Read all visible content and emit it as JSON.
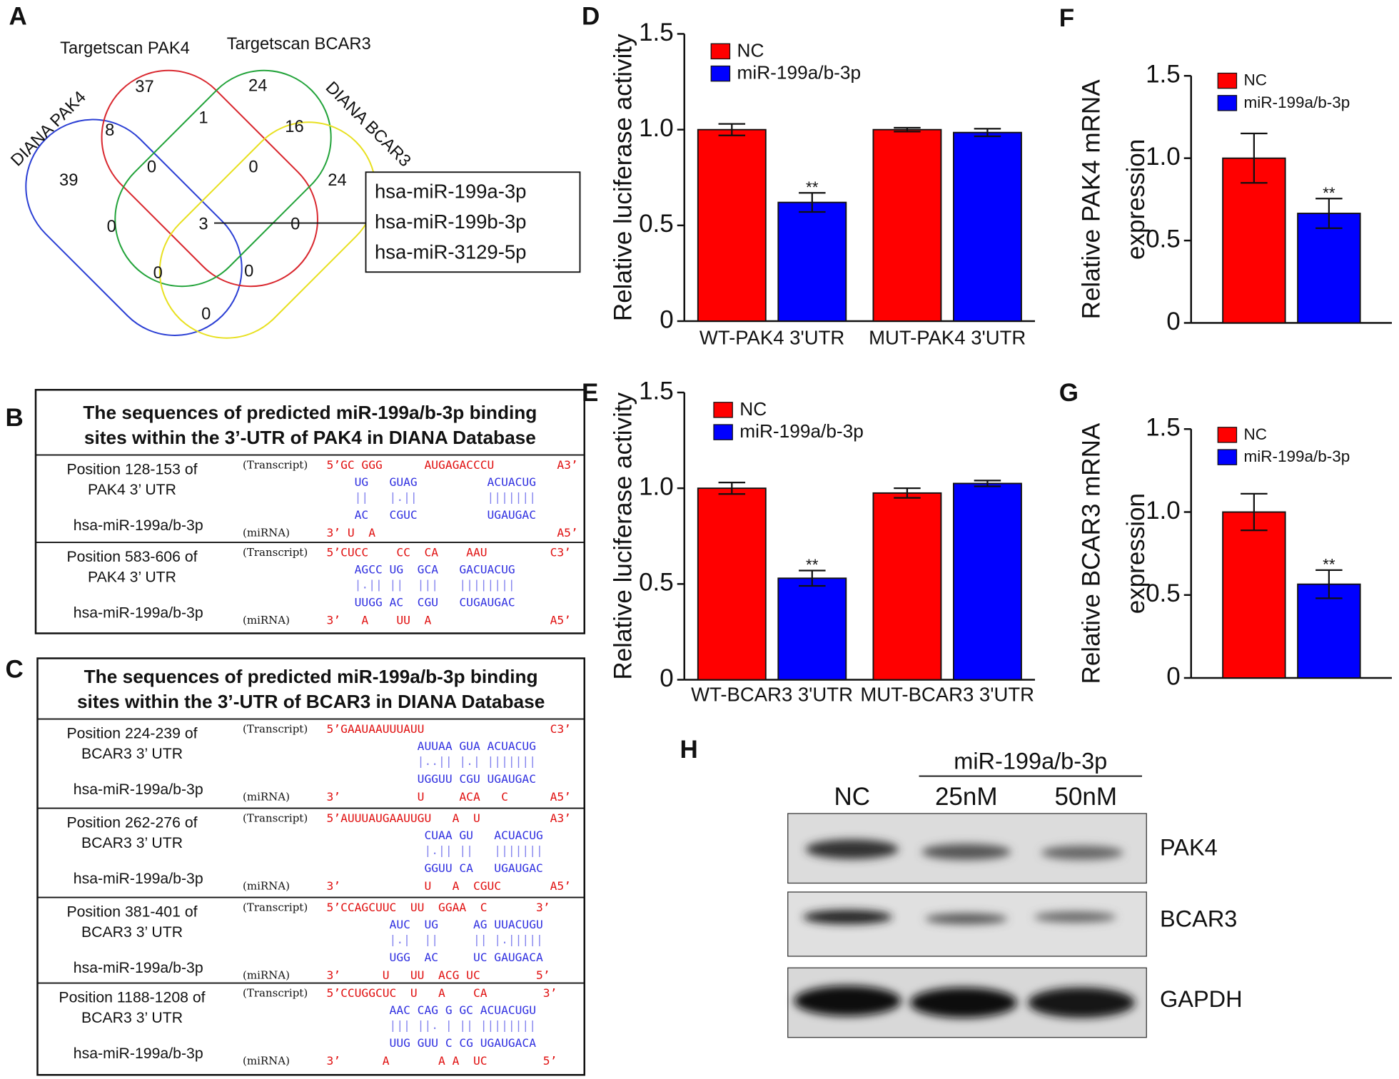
{
  "panel_labels": [
    "A",
    "B",
    "C",
    "D",
    "E",
    "F",
    "G",
    "H"
  ],
  "venn": {
    "sets": [
      "Targetscan PAK4",
      "Targetscan BCAR3",
      "DIANA PAK4",
      "DIANA BCAR3"
    ],
    "counts": [
      37,
      24,
      8,
      1,
      16,
      39,
      0,
      0,
      24,
      0,
      3,
      0,
      0,
      0,
      0
    ],
    "mirnas": [
      "hsa-miR-199a-3p",
      "hsa-miR-199b-3p",
      "hsa-miR-3129-5p"
    ]
  },
  "sequences": [
    {
      "title": [
        "The sequences of predicted miR-199a/b-3p binding",
        "sites within the 3’-UTR of PAK4 in DIANA Database"
      ],
      "rows": [
        {
          "position": [
            "Position 128-153 of",
            "PAK4 3’ UTR"
          ],
          "mirna": "hsa-miR-199a/b-3p",
          "transcript_tag": "(Transcript)",
          "mirna_tag": "(miRNA)",
          "lines": [
            "5’GC GGG      AUGAGACCCU         A3’",
            "    UG   GUAG          ACUACUG",
            "    ||   |.||          |||||||",
            "    AC   CGUC          UGAUGAC",
            "3’ U  A                          A5’"
          ]
        },
        {
          "position": [
            "Position 583-606 of",
            "PAK4 3’ UTR"
          ],
          "mirna": "hsa-miR-199a/b-3p",
          "transcript_tag": "(Transcript)",
          "mirna_tag": "(miRNA)",
          "lines": [
            "5’CUCC    CC  CA    AAU         C3’",
            "    AGCC UG  GCA   GACUACUG",
            "    |.|| ||  |||   ||||||||",
            "    UUGG AC  CGU   CUGAUGAC",
            "3’   A    UU  A                 A5’"
          ]
        }
      ]
    },
    {
      "title": [
        "The sequences of predicted miR-199a/b-3p binding",
        "sites within the 3’-UTR of BCAR3 in DIANA Database"
      ],
      "rows": [
        {
          "position": [
            "Position 224-239 of",
            "BCAR3 3’ UTR"
          ],
          "mirna": "hsa-miR-199a/b-3p",
          "transcript_tag": "(Transcript)",
          "mirna_tag": "(miRNA)",
          "lines": [
            "5’GAAUAAUUUAUU                  C3’",
            "             AUUAA GUA ACUACUG",
            "             |..|| |.| |||||||",
            "             UGGUU CGU UGAUGAC",
            "3’           U     ACA   C      A5’"
          ]
        },
        {
          "position": [
            "Position 262-276 of",
            "BCAR3 3’ UTR"
          ],
          "mirna": "hsa-miR-199a/b-3p",
          "transcript_tag": "(Transcript)",
          "mirna_tag": "(miRNA)",
          "lines": [
            "5’AUUUAUGAAUUGU   A  U          A3’",
            "              CUAA GU   ACUACUG",
            "              |.|| ||   |||||||",
            "              GGUU CA   UGAUGAC",
            "3’            U   A  CGUC       A5’"
          ]
        },
        {
          "position": [
            "Position 381-401 of",
            "BCAR3 3’ UTR"
          ],
          "mirna": "hsa-miR-199a/b-3p",
          "transcript_tag": "(Transcript)",
          "mirna_tag": "(miRNA)",
          "lines": [
            "5’CCAGCUUC  UU  GGAA  C       3’",
            "         AUC  UG     AG UUACUGU",
            "         |.|  ||     || |.|||||",
            "         UGG  AC     UC GAUGACA",
            "3’      U   UU  ACG UC        5’"
          ]
        },
        {
          "position": [
            "Position 1188-1208 of",
            "BCAR3 3’ UTR"
          ],
          "mirna": "hsa-miR-199a/b-3p",
          "transcript_tag": "(Transcript)",
          "mirna_tag": "(miRNA)",
          "lines": [
            "5’CCUGGCUC  U   A    CA        3’",
            "         AAC CAG G GC ACUACUGU",
            "         ||| ||. | || ||||||||",
            "         UUG GUU C CG UGAUGACA",
            "3’      A       A A  UC        5’"
          ]
        }
      ]
    }
  ],
  "chart_data": [
    {
      "type": "bar",
      "ylabel": "Relative luciferase activity",
      "categories": [
        "WT-PAK4 3'UTR",
        "MUT-PAK4 3'UTR"
      ],
      "series": [
        {
          "name": "NC",
          "color": "#ff0000",
          "values": [
            1.0,
            1.0
          ],
          "errors": [
            0.03,
            0.01
          ]
        },
        {
          "name": "miR-199a/b-3p",
          "color": "#0000ff",
          "values": [
            0.62,
            0.985
          ],
          "errors": [
            0.05,
            0.02
          ],
          "significance": [
            "**",
            null
          ]
        }
      ],
      "ylim": [
        0,
        1.5
      ],
      "yticks": [
        0,
        0.5,
        {
          "value": 1,
          "label": "1.0"
        },
        1.5
      ],
      "legend": "upper left"
    },
    {
      "type": "bar",
      "ylabel": "Relative luciferase activity",
      "categories": [
        "WT-BCAR3 3'UTR",
        "MUT-BCAR3 3'UTR"
      ],
      "series": [
        {
          "name": "NC",
          "color": "#ff0000",
          "values": [
            1.0,
            0.975
          ],
          "errors": [
            0.03,
            0.025
          ]
        },
        {
          "name": "miR-199a/b-3p",
          "color": "#0000ff",
          "values": [
            0.53,
            1.025
          ],
          "errors": [
            0.04,
            0.015
          ],
          "significance": [
            "**",
            null
          ]
        }
      ],
      "ylim": [
        0,
        1.5
      ],
      "yticks": [
        0,
        0.5,
        {
          "value": 1,
          "label": "1.0"
        },
        1.5
      ],
      "legend": "upper left"
    },
    {
      "type": "bar",
      "ylabel": [
        "Relative PAK4 mRNA",
        "expression"
      ],
      "categories": [
        null
      ],
      "series": [
        {
          "name": "NC",
          "color": "#ff0000",
          "values": [
            1.0
          ],
          "errors": [
            0.15
          ]
        },
        {
          "name": "miR-199a/b-3p",
          "color": "#0000ff",
          "values": [
            0.665
          ],
          "errors": [
            0.09
          ],
          "significance": [
            "**"
          ]
        }
      ],
      "ylim": [
        0,
        1.5
      ],
      "yticks": [
        0,
        0.5,
        {
          "value": 1,
          "label": "1.0"
        },
        1.5
      ],
      "legend": "upper left"
    },
    {
      "type": "bar",
      "ylabel": [
        "Relative BCAR3 mRNA",
        "expression"
      ],
      "categories": [
        null
      ],
      "series": [
        {
          "name": "NC",
          "color": "#ff0000",
          "values": [
            1.0
          ],
          "errors": [
            0.11
          ]
        },
        {
          "name": "miR-199a/b-3p",
          "color": "#0000ff",
          "values": [
            0.565
          ],
          "errors": [
            0.085
          ],
          "significance": [
            "**"
          ]
        }
      ],
      "ylim": [
        0,
        1.5
      ],
      "yticks": [
        0,
        0.5,
        {
          "value": 1,
          "label": "1.0"
        },
        1.5
      ],
      "legend": "upper left"
    }
  ],
  "blot": {
    "treatment": "miR-199a/b-3p",
    "lanes": [
      "NC",
      "25nM",
      "50nM"
    ],
    "proteins": [
      "PAK4",
      "BCAR3",
      "GAPDH"
    ]
  }
}
